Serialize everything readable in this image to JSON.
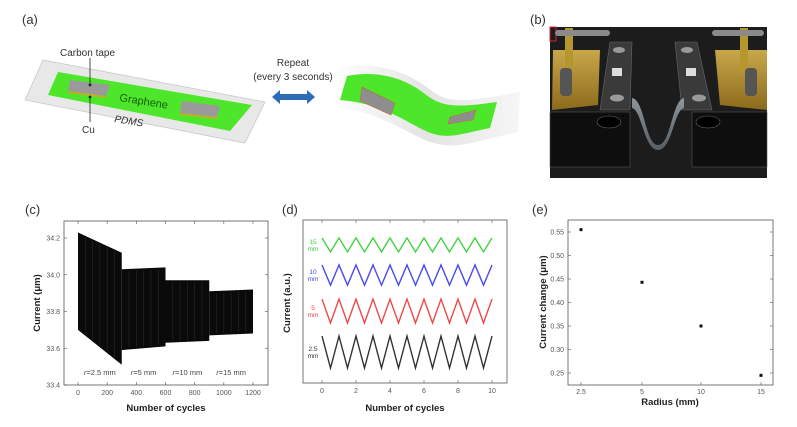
{
  "panels": {
    "a": {
      "label": "(a)",
      "carbon_tape": "Carbon tape",
      "graphene": "Graphene",
      "cu": "Cu",
      "pdms": "PDMS",
      "repeat": "Repeat",
      "repeat_interval": "(every 3 seconds)",
      "colors": {
        "graphene": "#4ee62a",
        "pdms": "#e6e6e6",
        "electrode": "#9a9a9a",
        "cu": "#e0a020",
        "arrow": "#2d6db8"
      }
    },
    "b": {
      "label": "(b)"
    },
    "c": {
      "label": "(c)"
    },
    "d": {
      "label": "(d)"
    },
    "e": {
      "label": "(e)"
    }
  },
  "chart_data": [
    {
      "id": "c",
      "type": "area",
      "title": "",
      "xlabel": "Number of cycles",
      "ylabel": "Current (μm)",
      "xlim": [
        -100,
        1300
      ],
      "ylim": [
        33.4,
        34.25
      ],
      "xticks": [
        "0",
        "200",
        "400",
        "600",
        "800",
        "1000",
        "1200"
      ],
      "xtick_values": [
        0,
        200,
        400,
        600,
        800,
        1000,
        1200
      ],
      "yticks": [
        "33.4",
        "33.6",
        "33.8",
        "34.0",
        "34.2"
      ],
      "ytick_values": [
        33.4,
        33.6,
        33.8,
        34.0,
        34.2
      ],
      "series": [
        {
          "name": "r=2.5 mm",
          "cycles": [
            0,
            300
          ],
          "max": [
            34.23,
            34.12
          ],
          "min": [
            33.7,
            33.51
          ]
        },
        {
          "name": "r=5 mm",
          "cycles": [
            300,
            600
          ],
          "max": [
            34.03,
            34.04
          ],
          "min": [
            33.59,
            33.61
          ]
        },
        {
          "name": "r=10 mm",
          "cycles": [
            600,
            900
          ],
          "max": [
            33.97,
            33.97
          ],
          "min": [
            33.63,
            33.64
          ]
        },
        {
          "name": "r=15 mm",
          "cycles": [
            900,
            1200
          ],
          "max": [
            33.91,
            33.92
          ],
          "min": [
            33.67,
            33.68
          ]
        }
      ],
      "annotations": [
        {
          "prefix": "r",
          "text": "=2.5 mm",
          "x": 150
        },
        {
          "prefix": "r",
          "text": "=5 mm",
          "x": 450
        },
        {
          "prefix": "r",
          "text": "=10 mm",
          "x": 750
        },
        {
          "prefix": "r",
          "text": "=15 mm",
          "x": 1050
        }
      ]
    },
    {
      "id": "d",
      "type": "line",
      "xlabel": "Number of cycles",
      "ylabel": "Current (a.u.)",
      "xlim": [
        -1,
        11
      ],
      "ylim": [
        0,
        10
      ],
      "xticks": [
        "0",
        "2",
        "4",
        "6",
        "8",
        "10"
      ],
      "xtick_values": [
        0,
        2,
        4,
        6,
        8,
        10
      ],
      "cycles": 10,
      "series": [
        {
          "name": "15",
          "unit": "mm",
          "color": "#3fd13f",
          "high": 8.9,
          "low": 8.04
        },
        {
          "name": "10",
          "unit": "mm",
          "color": "#4a4af0",
          "high": 7.24,
          "low": 6.0
        },
        {
          "name": "5",
          "unit": "mm",
          "color": "#f04848",
          "high": 5.15,
          "low": 3.68
        },
        {
          "name": "2.5",
          "unit": "mm",
          "color": "#333333",
          "high": 2.88,
          "low": 0.92
        }
      ]
    },
    {
      "id": "e",
      "type": "scatter",
      "xlabel": "Radius (mm)",
      "ylabel": "Current change (μm)",
      "categories": [
        "2.5",
        "5",
        "10",
        "15"
      ],
      "values": [
        0.555,
        0.443,
        0.35,
        0.245
      ],
      "ylim": [
        0.225,
        0.575
      ],
      "yticks": [
        "0.25",
        "0.30",
        "0.35",
        "0.40",
        "0.45",
        "0.50",
        "0.55"
      ],
      "ytick_values": [
        0.25,
        0.3,
        0.35,
        0.4,
        0.45,
        0.5,
        0.55
      ]
    }
  ]
}
